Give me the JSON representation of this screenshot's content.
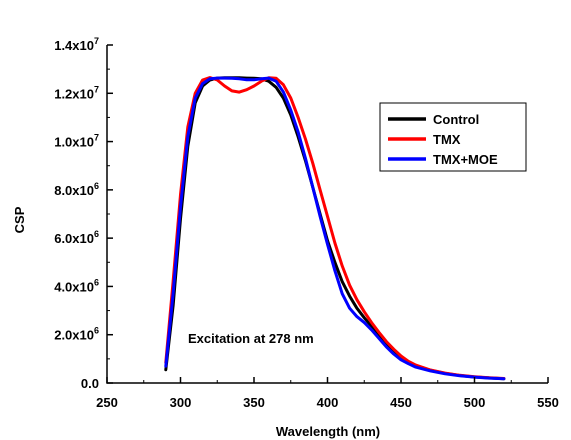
{
  "chart_data": {
    "type": "line",
    "title": "",
    "xlabel": "Wavelength (nm)",
    "ylabel": "CSP",
    "xlim": [
      250,
      550
    ],
    "ylim": [
      0,
      14000000
    ],
    "x_ticks": [
      250,
      300,
      350,
      400,
      450,
      500,
      550
    ],
    "x_tick_labels": [
      "250",
      "300",
      "350",
      "400",
      "450",
      "500",
      "550"
    ],
    "y_ticks": [
      {
        "value": 0,
        "mantissa": "0.0",
        "exponent": ""
      },
      {
        "value": 2000000,
        "mantissa": "2.0x10",
        "exponent": "6"
      },
      {
        "value": 4000000,
        "mantissa": "4.0x10",
        "exponent": "6"
      },
      {
        "value": 6000000,
        "mantissa": "6.0x10",
        "exponent": "6"
      },
      {
        "value": 8000000,
        "mantissa": "8.0x10",
        "exponent": "6"
      },
      {
        "value": 10000000,
        "mantissa": "1.0x10",
        "exponent": "7"
      },
      {
        "value": 12000000,
        "mantissa": "1.2x10",
        "exponent": "7"
      },
      {
        "value": 14000000,
        "mantissa": "1.4x10",
        "exponent": "7"
      }
    ],
    "grid": false,
    "legend_position": "top-right",
    "annotation": "Excitation at 278 nm",
    "series": [
      {
        "name": "Control",
        "color": "#000000",
        "points": [
          [
            290,
            550000
          ],
          [
            295,
            3200000
          ],
          [
            300,
            6800000
          ],
          [
            305,
            9800000
          ],
          [
            310,
            11600000
          ],
          [
            315,
            12300000
          ],
          [
            320,
            12550000
          ],
          [
            325,
            12630000
          ],
          [
            330,
            12640000
          ],
          [
            335,
            12640000
          ],
          [
            340,
            12640000
          ],
          [
            345,
            12630000
          ],
          [
            350,
            12620000
          ],
          [
            355,
            12600000
          ],
          [
            360,
            12500000
          ],
          [
            365,
            12250000
          ],
          [
            370,
            11800000
          ],
          [
            375,
            11100000
          ],
          [
            380,
            10200000
          ],
          [
            385,
            9200000
          ],
          [
            390,
            8100000
          ],
          [
            395,
            7000000
          ],
          [
            400,
            5900000
          ],
          [
            405,
            5000000
          ],
          [
            410,
            4200000
          ],
          [
            415,
            3600000
          ],
          [
            420,
            3100000
          ],
          [
            425,
            2700000
          ],
          [
            430,
            2350000
          ],
          [
            435,
            2000000
          ],
          [
            440,
            1650000
          ],
          [
            445,
            1350000
          ],
          [
            450,
            1080000
          ],
          [
            455,
            880000
          ],
          [
            460,
            720000
          ],
          [
            470,
            530000
          ],
          [
            480,
            400000
          ],
          [
            490,
            310000
          ],
          [
            500,
            250000
          ],
          [
            510,
            210000
          ],
          [
            520,
            180000
          ]
        ]
      },
      {
        "name": "TMX",
        "color": "#ff0000",
        "points": [
          [
            290,
            850000
          ],
          [
            295,
            4200000
          ],
          [
            300,
            7800000
          ],
          [
            305,
            10600000
          ],
          [
            310,
            12000000
          ],
          [
            315,
            12550000
          ],
          [
            320,
            12650000
          ],
          [
            325,
            12550000
          ],
          [
            330,
            12300000
          ],
          [
            335,
            12100000
          ],
          [
            340,
            12050000
          ],
          [
            345,
            12150000
          ],
          [
            350,
            12300000
          ],
          [
            355,
            12500000
          ],
          [
            360,
            12640000
          ],
          [
            365,
            12620000
          ],
          [
            370,
            12350000
          ],
          [
            375,
            11800000
          ],
          [
            380,
            11000000
          ],
          [
            385,
            10100000
          ],
          [
            390,
            9100000
          ],
          [
            395,
            8000000
          ],
          [
            400,
            6900000
          ],
          [
            405,
            5800000
          ],
          [
            410,
            4850000
          ],
          [
            415,
            4050000
          ],
          [
            420,
            3450000
          ],
          [
            425,
            2950000
          ],
          [
            430,
            2500000
          ],
          [
            435,
            2100000
          ],
          [
            440,
            1720000
          ],
          [
            445,
            1400000
          ],
          [
            450,
            1120000
          ],
          [
            455,
            900000
          ],
          [
            460,
            740000
          ],
          [
            470,
            540000
          ],
          [
            480,
            410000
          ],
          [
            490,
            320000
          ],
          [
            500,
            260000
          ],
          [
            510,
            215000
          ],
          [
            520,
            185000
          ]
        ]
      },
      {
        "name": "TMX+MOE",
        "color": "#0000ff",
        "points": [
          [
            290,
            700000
          ],
          [
            295,
            3700000
          ],
          [
            300,
            7300000
          ],
          [
            305,
            10200000
          ],
          [
            310,
            11800000
          ],
          [
            315,
            12400000
          ],
          [
            320,
            12600000
          ],
          [
            325,
            12630000
          ],
          [
            330,
            12630000
          ],
          [
            335,
            12620000
          ],
          [
            340,
            12600000
          ],
          [
            345,
            12560000
          ],
          [
            350,
            12560000
          ],
          [
            355,
            12600000
          ],
          [
            360,
            12630000
          ],
          [
            365,
            12500000
          ],
          [
            370,
            12050000
          ],
          [
            375,
            11300000
          ],
          [
            380,
            10400000
          ],
          [
            385,
            9300000
          ],
          [
            390,
            8100000
          ],
          [
            395,
            6900000
          ],
          [
            400,
            5750000
          ],
          [
            405,
            4650000
          ],
          [
            410,
            3700000
          ],
          [
            415,
            3100000
          ],
          [
            420,
            2750000
          ],
          [
            425,
            2500000
          ],
          [
            430,
            2200000
          ],
          [
            435,
            1850000
          ],
          [
            440,
            1500000
          ],
          [
            445,
            1200000
          ],
          [
            450,
            960000
          ],
          [
            455,
            800000
          ],
          [
            460,
            660000
          ],
          [
            470,
            500000
          ],
          [
            480,
            380000
          ],
          [
            490,
            300000
          ],
          [
            500,
            245000
          ],
          [
            510,
            205000
          ],
          [
            520,
            180000
          ]
        ]
      }
    ]
  }
}
